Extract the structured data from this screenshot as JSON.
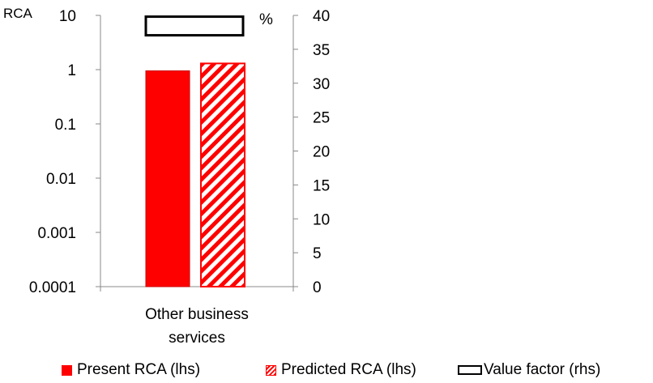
{
  "chart_data": {
    "type": "bar",
    "categories": [
      "Other business services"
    ],
    "left_axis": {
      "label": "RCA",
      "scale": "log",
      "range": [
        0.0001,
        10
      ],
      "ticks": [
        "0.0001",
        "0.001",
        "0.01",
        "0.1",
        "1",
        "10"
      ]
    },
    "right_axis": {
      "label": "%",
      "scale": "linear",
      "range": [
        0,
        40
      ],
      "ticks": [
        "0",
        "5",
        "10",
        "15",
        "20",
        "25",
        "30",
        "35",
        "40"
      ]
    },
    "series": [
      {
        "name": "Present RCA (lhs)",
        "axis": "left",
        "style": "solid",
        "color": "#ff0000",
        "values": [
          0.95
        ]
      },
      {
        "name": "Predicted RCA (lhs)",
        "axis": "left",
        "style": "hatched",
        "color": "#ff0000",
        "values": [
          1.3
        ]
      },
      {
        "name": "Value factor (rhs)",
        "axis": "right",
        "style": "outline",
        "color": "#000000",
        "values": [
          38.5
        ]
      }
    ],
    "grid": false,
    "legend_position": "bottom"
  }
}
